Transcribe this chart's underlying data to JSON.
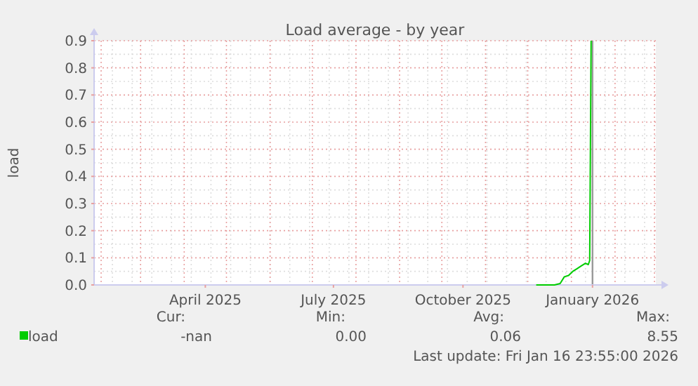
{
  "chart_data": {
    "type": "line",
    "title": "Load average - by year",
    "ylabel": "load",
    "x": [
      "2025-12-07",
      "2025-12-20",
      "2025-12-24",
      "2025-12-27",
      "2025-12-30",
      "2026-01-02",
      "2026-01-05",
      "2026-01-08",
      "2026-01-11",
      "2026-01-13",
      "2026-01-14",
      "2026-01-15"
    ],
    "series": [
      {
        "name": "load",
        "color": "#00cc00",
        "values": [
          0.0,
          0.0,
          0.005,
          0.03,
          0.035,
          0.05,
          0.06,
          0.07,
          0.08,
          0.075,
          0.09,
          0.9
        ]
      }
    ],
    "xlim": [
      "2025-01-27",
      "2026-03-02"
    ],
    "xticks": [
      {
        "value": "2025-04-16",
        "label": "April 2025"
      },
      {
        "value": "2025-07-16",
        "label": "July 2025"
      },
      {
        "value": "2025-10-16",
        "label": "October 2025"
      },
      {
        "value": "2026-01-16",
        "label": "January 2026"
      }
    ],
    "ylim": [
      0,
      0.9
    ],
    "yticks": [
      {
        "value": 0,
        "label": "0.0"
      },
      0.1,
      0.2,
      0.3,
      0.4,
      0.5,
      0.6,
      0.7,
      0.8,
      0.9
    ],
    "grid": true,
    "legend": "bottom left",
    "marker": "none",
    "line_style": "solid",
    "ref_lines": [
      {
        "axis": "x",
        "value": "2026-01-16",
        "color": "#999999"
      }
    ],
    "annotations": [
      "Cur:",
      "Min:",
      "Avg:",
      "Max:",
      "-nan",
      "0.00",
      "0.06",
      "8.55",
      "Last update: Fri Jan 16 23:55:00 2026"
    ]
  }
}
